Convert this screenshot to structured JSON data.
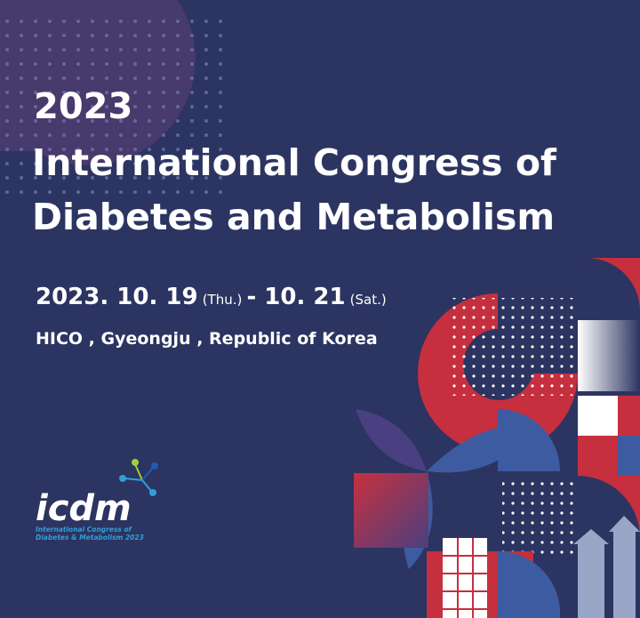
{
  "header": {
    "year": "2023",
    "title_lines": [
      "International Congress of",
      "Diabetes and Metabolism"
    ]
  },
  "dates": {
    "start": "2023. 10. 19",
    "start_day": "(Thu.)",
    "end": "- 10. 21",
    "end_day": "(Sat.)"
  },
  "venue": "HICO , Gyeongju , Republic of Korea",
  "logo": {
    "wordmark": "icdm",
    "subtitle_lines": [
      "International Congress of",
      "Diabetes & Metabolism 2023"
    ]
  }
}
